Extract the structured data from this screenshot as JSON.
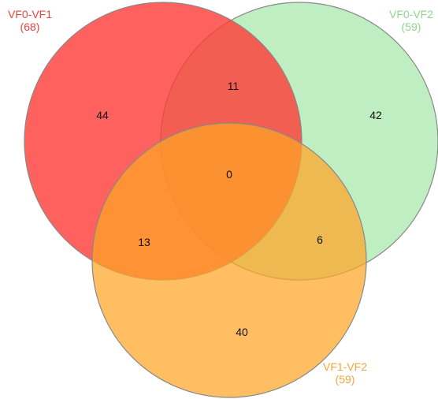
{
  "sets": [
    {
      "id": "a",
      "name": "VF0-VF1",
      "size": "(68)",
      "color": "#ff5a55"
    },
    {
      "id": "b",
      "name": "VF0-VF2",
      "size": "(59)",
      "color": "#a9e8ad"
    },
    {
      "id": "c",
      "name": "VF1-VF2",
      "size": "(59)",
      "color": "#ffb347"
    }
  ],
  "regions": {
    "only_a": "44",
    "only_b": "42",
    "only_c": "40",
    "a_b": "11",
    "a_c": "13",
    "b_c": "6",
    "a_b_c": "0"
  }
}
